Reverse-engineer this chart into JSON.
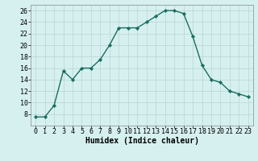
{
  "x": [
    0,
    1,
    2,
    3,
    4,
    5,
    6,
    7,
    8,
    9,
    10,
    11,
    12,
    13,
    14,
    15,
    16,
    17,
    18,
    19,
    20,
    21,
    22,
    23
  ],
  "y": [
    7.5,
    7.5,
    9.5,
    15.5,
    14,
    16,
    16,
    17.5,
    20,
    23,
    23,
    23,
    24,
    25,
    26,
    26,
    25.5,
    21.5,
    16.5,
    14,
    13.5,
    12,
    11.5,
    11
  ],
  "line_color": "#1a6e5e",
  "marker_color": "#1a6e5e",
  "bg_color": "#d6f0f0",
  "grid_color": "#b8d4d4",
  "xlabel": "Humidex (Indice chaleur)",
  "xlim": [
    -0.5,
    23.5
  ],
  "ylim": [
    6,
    27
  ],
  "yticks": [
    8,
    10,
    12,
    14,
    16,
    18,
    20,
    22,
    24,
    26
  ],
  "xticks": [
    0,
    1,
    2,
    3,
    4,
    5,
    6,
    7,
    8,
    9,
    10,
    11,
    12,
    13,
    14,
    15,
    16,
    17,
    18,
    19,
    20,
    21,
    22,
    23
  ],
  "xlabel_fontsize": 7.0,
  "tick_fontsize": 6.0,
  "linewidth": 1.0,
  "markersize": 2.2
}
